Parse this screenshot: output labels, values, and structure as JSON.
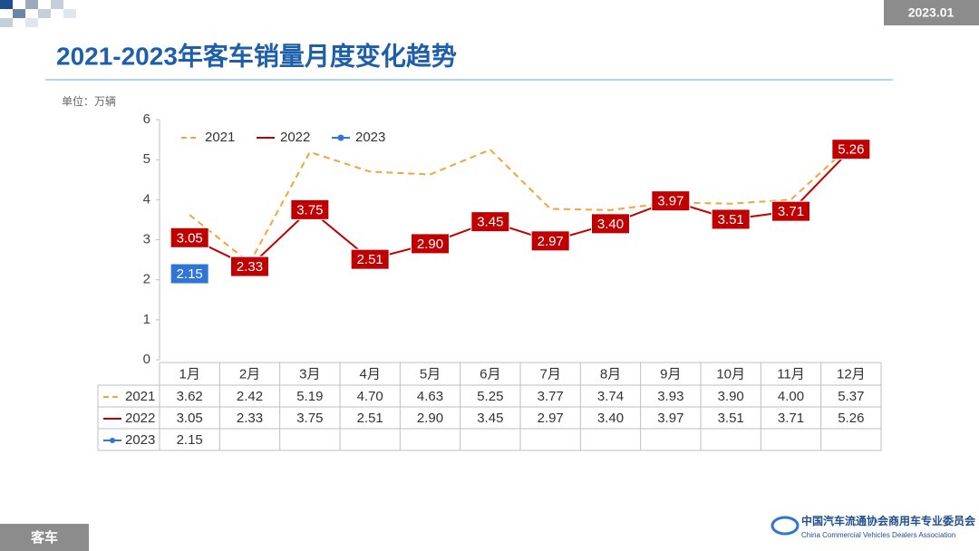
{
  "badge": "2023.01",
  "footer": {
    "section": "客车",
    "org_cn": "中国汽车流通协会商用车专业委员会",
    "org_en": "China Commercial Vehicles Dealers Association"
  },
  "chart_data": {
    "type": "line",
    "title": "2021-2023年客车销量月度变化趋势",
    "unit_label": "单位：万辆",
    "categories": [
      "1月",
      "2月",
      "3月",
      "4月",
      "5月",
      "6月",
      "7月",
      "8月",
      "9月",
      "10月",
      "11月",
      "12月"
    ],
    "series": [
      {
        "name": "2021",
        "color": "#f5a33a",
        "dashed": true,
        "data_labels": false,
        "values": [
          3.62,
          2.42,
          5.19,
          4.7,
          4.63,
          5.25,
          3.77,
          3.74,
          3.93,
          3.9,
          4.0,
          5.37
        ],
        "value_labels": [
          "3.62",
          "2.42",
          "5.19",
          "4.70",
          "4.63",
          "5.25",
          "3.77",
          "3.74",
          "3.93",
          "3.90",
          "4.00",
          "5.37"
        ]
      },
      {
        "name": "2022",
        "color": "#c00000",
        "dashed": false,
        "data_labels": true,
        "values": [
          3.05,
          2.33,
          3.75,
          2.51,
          2.9,
          3.45,
          2.97,
          3.4,
          3.97,
          3.51,
          3.71,
          5.26
        ],
        "value_labels": [
          "3.05",
          "2.33",
          "3.75",
          "2.51",
          "2.90",
          "3.45",
          "2.97",
          "3.40",
          "3.97",
          "3.51",
          "3.71",
          "5.26"
        ]
      },
      {
        "name": "2023",
        "color": "#2e75d6",
        "dashed": false,
        "data_labels": true,
        "markers": true,
        "values": [
          2.15,
          null,
          null,
          null,
          null,
          null,
          null,
          null,
          null,
          null,
          null,
          null
        ],
        "value_labels": [
          "2.15",
          null,
          null,
          null,
          null,
          null,
          null,
          null,
          null,
          null,
          null,
          null
        ]
      }
    ],
    "ylim": [
      0,
      6
    ],
    "yticks": [
      0,
      1,
      2,
      3,
      4,
      5,
      6
    ],
    "grid": false,
    "legend": "upper left",
    "data_table": true
  }
}
